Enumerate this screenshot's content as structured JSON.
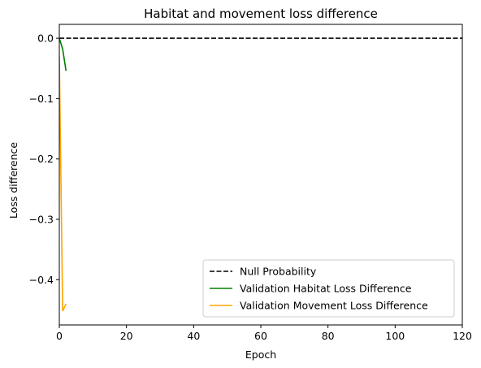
{
  "chart_data": {
    "type": "line",
    "title": "Habitat and movement loss difference",
    "xlabel": "Epoch",
    "ylabel": "Loss difference",
    "xlim": [
      0,
      120
    ],
    "ylim": [
      -0.475,
      0.023
    ],
    "xticks": [
      0,
      20,
      40,
      60,
      80,
      100,
      120
    ],
    "yticks": [
      0.0,
      -0.1,
      -0.2,
      -0.3,
      -0.4
    ],
    "xtick_labels": [
      "0",
      "20",
      "40",
      "60",
      "80",
      "100",
      "120"
    ],
    "ytick_labels": [
      "0.0",
      "−0.1",
      "−0.2",
      "−0.3",
      "−0.4"
    ],
    "grid": false,
    "legend_position": "lower-right",
    "series": [
      {
        "name": "Null Probability",
        "color": "#000000",
        "dash": "dashed",
        "x": [
          0,
          120
        ],
        "y": [
          0,
          0
        ]
      },
      {
        "name": "Validation Habitat Loss Difference",
        "color": "#008000",
        "dash": "solid",
        "x": [
          0,
          1,
          2
        ],
        "y": [
          0.0,
          -0.018,
          -0.054
        ]
      },
      {
        "name": "Validation Movement Loss Difference",
        "color": "#ffa500",
        "dash": "solid",
        "x": [
          0,
          1,
          2
        ],
        "y": [
          -0.03,
          -0.452,
          -0.44
        ]
      }
    ]
  }
}
